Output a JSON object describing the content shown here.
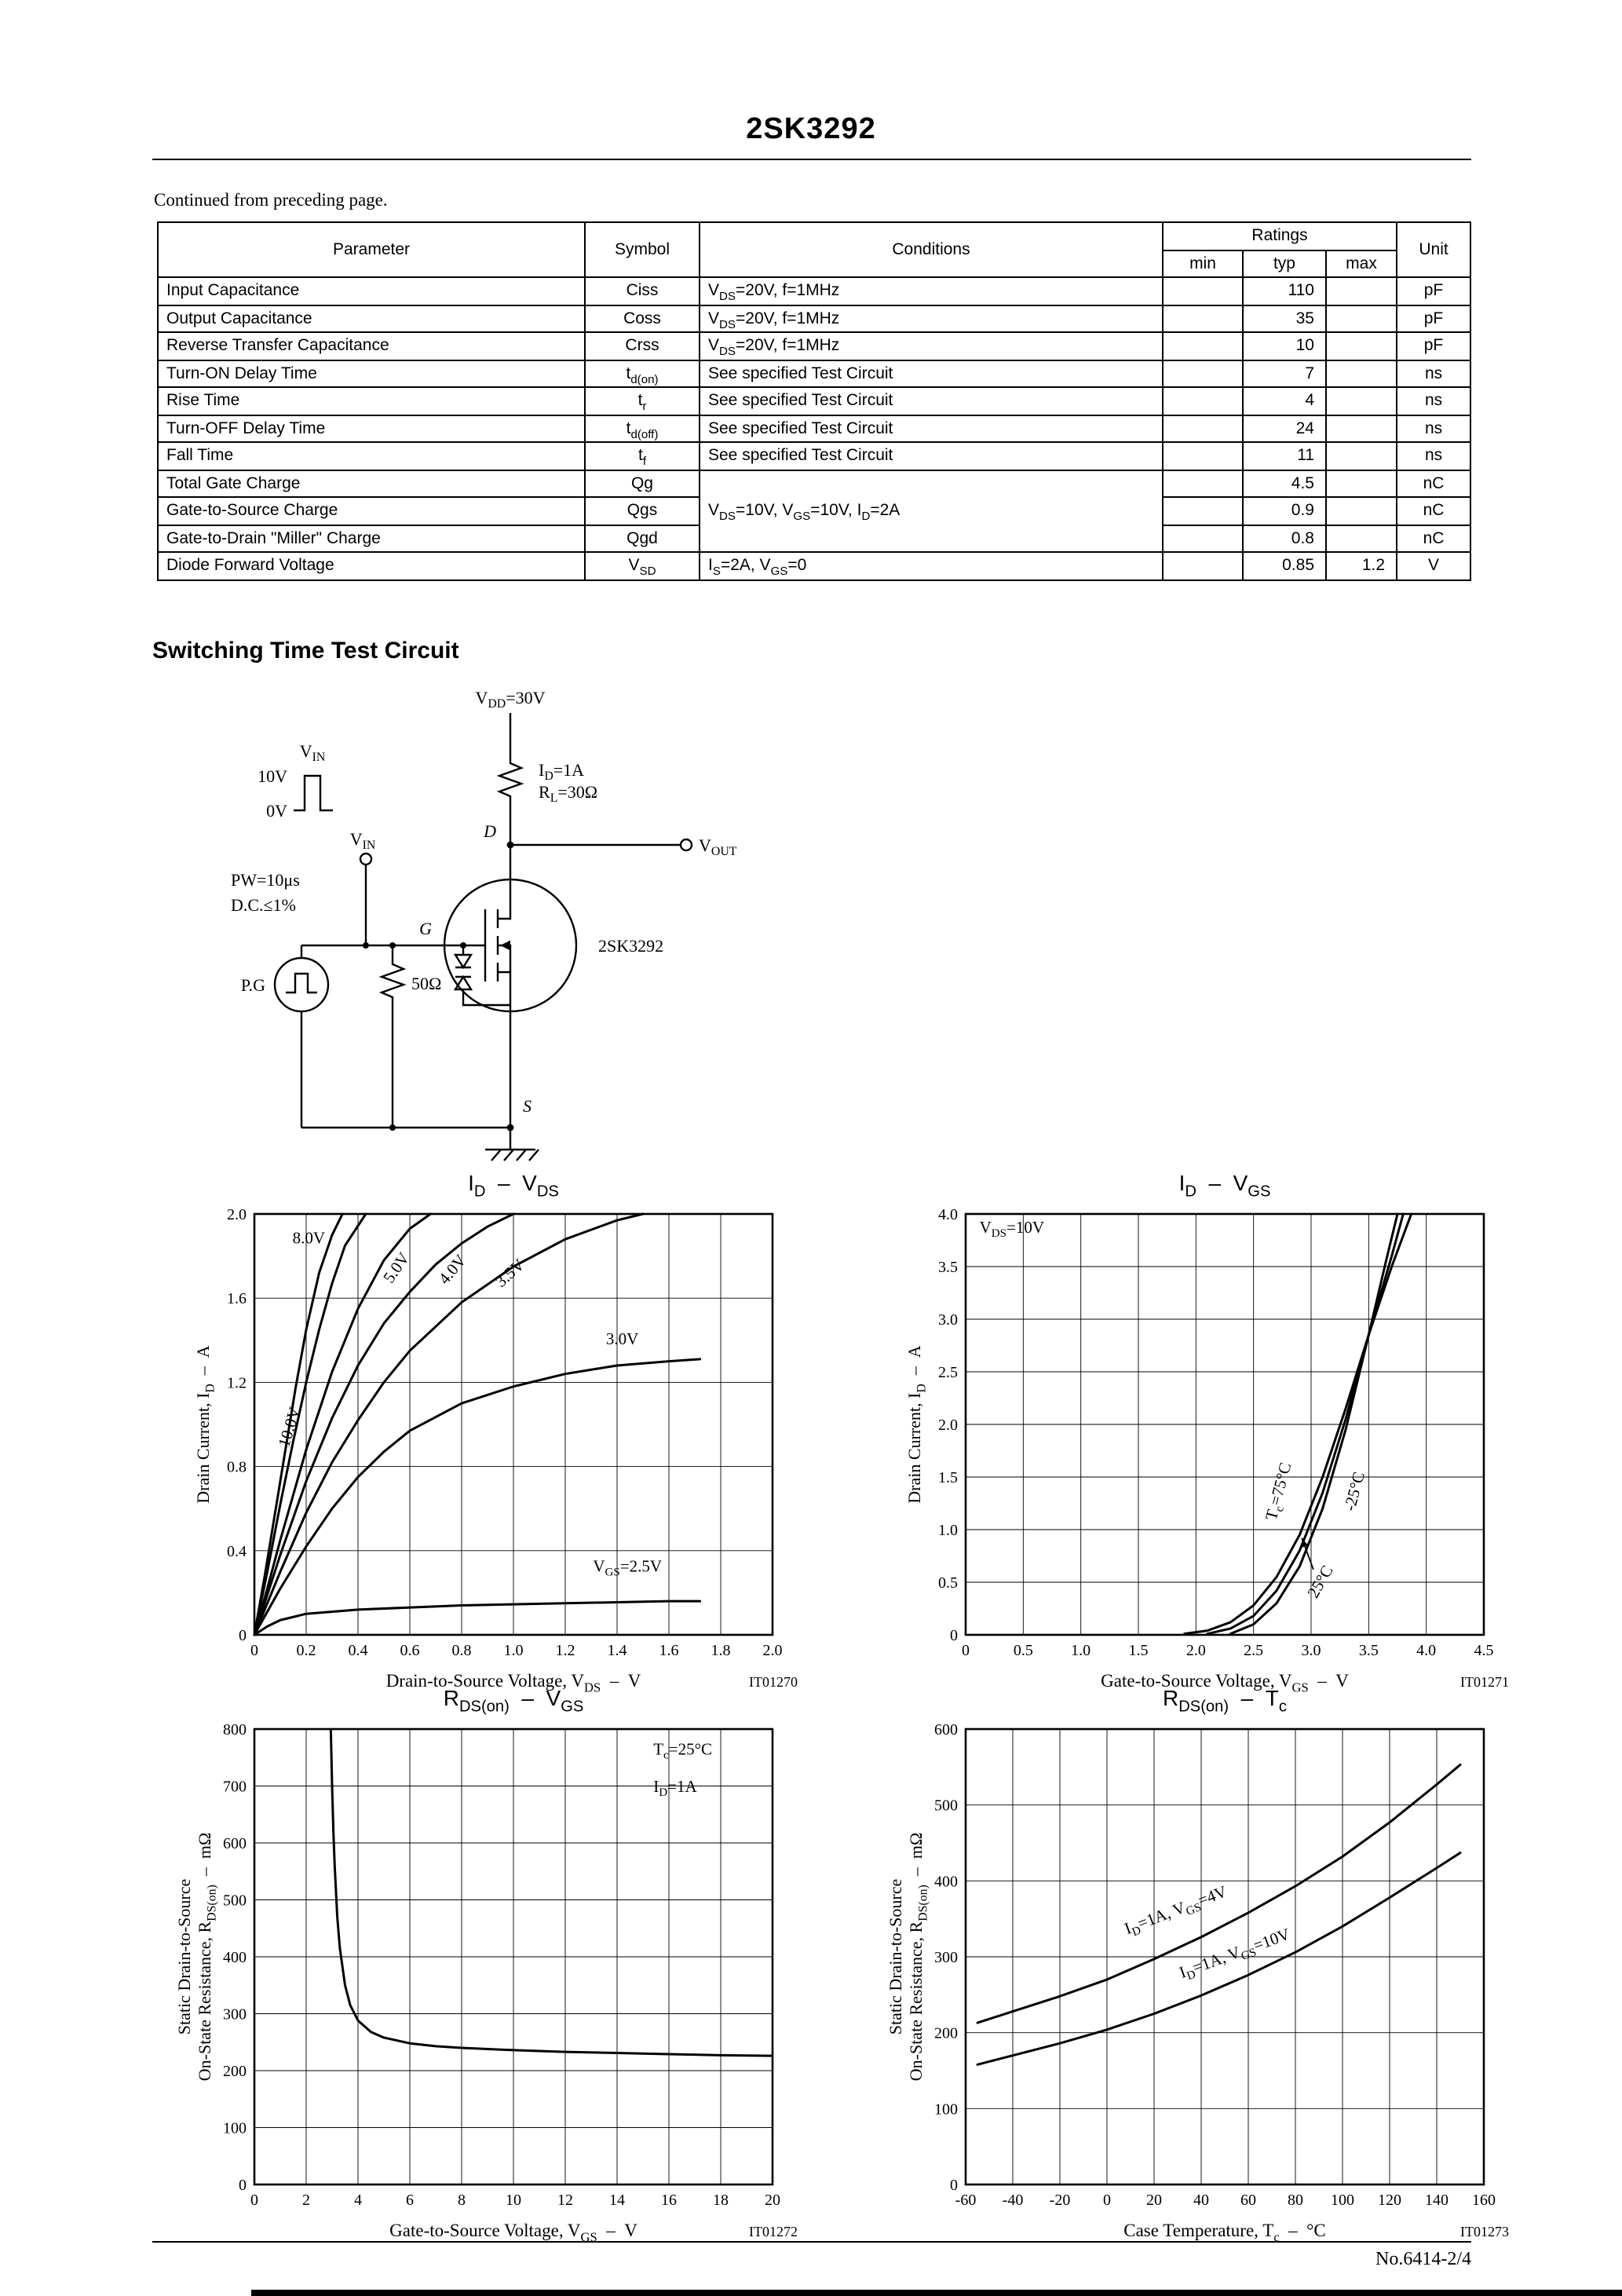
{
  "page": {
    "part_number": "2SK3292",
    "continued_note": "Continued from preceding page.",
    "footer_note": "No.6414-2/4"
  },
  "table": {
    "headers": {
      "parameter": "Parameter",
      "symbol": "Symbol",
      "conditions": "Conditions",
      "ratings": "Ratings",
      "min": "min",
      "typ": "typ",
      "max": "max",
      "unit": "Unit"
    },
    "rows": [
      {
        "parameter": "Input Capacitance",
        "symbol": "Ciss",
        "conditions": "V~DS~=20V, f=1MHz",
        "min": "",
        "typ": "110",
        "max": "",
        "unit": "pF"
      },
      {
        "parameter": "Output Capacitance",
        "symbol": "Coss",
        "conditions": "V~DS~=20V, f=1MHz",
        "min": "",
        "typ": "35",
        "max": "",
        "unit": "pF"
      },
      {
        "parameter": "Reverse Transfer Capacitance",
        "symbol": "Crss",
        "conditions": "V~DS~=20V, f=1MHz",
        "min": "",
        "typ": "10",
        "max": "",
        "unit": "pF"
      },
      {
        "parameter": "Turn-ON Delay Time",
        "symbol": "t~d(on)~",
        "conditions": "See specified Test Circuit",
        "min": "",
        "typ": "7",
        "max": "",
        "unit": "ns"
      },
      {
        "parameter": "Rise Time",
        "symbol": "t~r~",
        "conditions": "See specified Test Circuit",
        "min": "",
        "typ": "4",
        "max": "",
        "unit": "ns"
      },
      {
        "parameter": "Turn-OFF Delay Time",
        "symbol": "t~d(off)~",
        "conditions": "See specified Test Circuit",
        "min": "",
        "typ": "24",
        "max": "",
        "unit": "ns"
      },
      {
        "parameter": "Fall Time",
        "symbol": "t~f~",
        "conditions": "See specified Test Circuit",
        "min": "",
        "typ": "11",
        "max": "",
        "unit": "ns"
      },
      {
        "parameter": "Total Gate Charge",
        "symbol": "Qg",
        "conditions": "V~DS~=10V, V~GS~=10V, I~D~=2A",
        "cond_rowspan": 3,
        "min": "",
        "typ": "4.5",
        "max": "",
        "unit": "nC"
      },
      {
        "parameter": "Gate-to-Source Charge",
        "symbol": "Qgs",
        "conditions": null,
        "min": "",
        "typ": "0.9",
        "max": "",
        "unit": "nC"
      },
      {
        "parameter": "Gate-to-Drain \"Miller\" Charge",
        "symbol": "Qgd",
        "conditions": null,
        "min": "",
        "typ": "0.8",
        "max": "",
        "unit": "nC"
      },
      {
        "parameter": "Diode Forward Voltage",
        "symbol": "V~SD~",
        "conditions": "I~S~=2A, V~GS~=0",
        "min": "",
        "typ": "0.85",
        "max": "1.2",
        "unit": "V"
      }
    ]
  },
  "circuit": {
    "heading": "Switching Time Test Circuit",
    "labels": {
      "vdd": "V~DD~=30V",
      "id": "I~D~=1A",
      "rl": "R~L~=30Ω",
      "vin_wave": "V~IN~",
      "v10": "10V",
      "v0": "0V",
      "vin": "V~IN~",
      "vout": "V~OUT~",
      "d": "D",
      "g": "G",
      "s": "S",
      "pw": "PW=10μs",
      "dc": "D.C.≤1%",
      "pg": "P.G",
      "r50": "50Ω",
      "device": "2SK3292"
    }
  },
  "chart_data": [
    {
      "type": "line",
      "name": "id-vds",
      "title": "I~D~  –  V~DS~",
      "xlabel": "Drain-to-Source Voltage, V~DS~  –  V",
      "ylabel1": "Drain Current, I~D~  –  A",
      "tag": "IT01270",
      "xlim": [
        0,
        2
      ],
      "ylim": [
        0,
        2
      ],
      "xtick_vals": [
        0,
        0.2,
        0.4,
        0.6,
        0.8,
        1.0,
        1.2,
        1.4,
        1.6,
        1.8,
        2.0
      ],
      "xtick_labels": [
        "0",
        "0.2",
        "0.4",
        "0.6",
        "0.8",
        "1.0",
        "1.2",
        "1.4",
        "1.6",
        "1.8",
        "2.0"
      ],
      "ytick_vals": [
        0,
        0.4,
        0.8,
        1.2,
        1.6,
        2.0
      ],
      "ytick_labels": [
        "0",
        "0.4",
        "0.8",
        "1.2",
        "1.6",
        "2.0"
      ],
      "series": [
        {
          "name": "VGS=10.0V",
          "points": [
            [
              0,
              0
            ],
            [
              0.04,
              0.28
            ],
            [
              0.08,
              0.58
            ],
            [
              0.12,
              0.88
            ],
            [
              0.16,
              1.18
            ],
            [
              0.2,
              1.45
            ],
            [
              0.25,
              1.72
            ],
            [
              0.3,
              1.9
            ],
            [
              0.34,
              2.0
            ]
          ]
        },
        {
          "name": "VGS=8.0V",
          "points": [
            [
              0,
              0
            ],
            [
              0.05,
              0.3
            ],
            [
              0.1,
              0.62
            ],
            [
              0.15,
              0.92
            ],
            [
              0.2,
              1.2
            ],
            [
              0.25,
              1.45
            ],
            [
              0.3,
              1.67
            ],
            [
              0.35,
              1.85
            ],
            [
              0.43,
              2.0
            ]
          ]
        },
        {
          "name": "VGS=5.0V",
          "points": [
            [
              0,
              0
            ],
            [
              0.05,
              0.22
            ],
            [
              0.1,
              0.45
            ],
            [
              0.2,
              0.88
            ],
            [
              0.3,
              1.25
            ],
            [
              0.4,
              1.55
            ],
            [
              0.5,
              1.78
            ],
            [
              0.6,
              1.93
            ],
            [
              0.68,
              2.0
            ]
          ]
        },
        {
          "name": "VGS=4.0V",
          "points": [
            [
              0,
              0
            ],
            [
              0.1,
              0.38
            ],
            [
              0.2,
              0.73
            ],
            [
              0.3,
              1.03
            ],
            [
              0.4,
              1.28
            ],
            [
              0.5,
              1.48
            ],
            [
              0.6,
              1.63
            ],
            [
              0.7,
              1.76
            ],
            [
              0.8,
              1.86
            ],
            [
              0.9,
              1.94
            ],
            [
              1.0,
              2.0
            ]
          ]
        },
        {
          "name": "VGS=3.5V",
          "points": [
            [
              0,
              0
            ],
            [
              0.1,
              0.3
            ],
            [
              0.2,
              0.58
            ],
            [
              0.3,
              0.82
            ],
            [
              0.4,
              1.02
            ],
            [
              0.5,
              1.2
            ],
            [
              0.6,
              1.35
            ],
            [
              0.8,
              1.58
            ],
            [
              1.0,
              1.75
            ],
            [
              1.2,
              1.88
            ],
            [
              1.4,
              1.97
            ],
            [
              1.5,
              2.0
            ]
          ]
        },
        {
          "name": "VGS=3.0V",
          "points": [
            [
              0,
              0
            ],
            [
              0.1,
              0.22
            ],
            [
              0.2,
              0.42
            ],
            [
              0.3,
              0.6
            ],
            [
              0.4,
              0.75
            ],
            [
              0.5,
              0.87
            ],
            [
              0.6,
              0.97
            ],
            [
              0.8,
              1.1
            ],
            [
              1.0,
              1.18
            ],
            [
              1.2,
              1.24
            ],
            [
              1.4,
              1.28
            ],
            [
              1.6,
              1.3
            ],
            [
              1.72,
              1.31
            ]
          ]
        },
        {
          "name": "VGS=2.5V",
          "points": [
            [
              0,
              0
            ],
            [
              0.05,
              0.04
            ],
            [
              0.1,
              0.07
            ],
            [
              0.2,
              0.1
            ],
            [
              0.4,
              0.12
            ],
            [
              0.8,
              0.14
            ],
            [
              1.2,
              0.15
            ],
            [
              1.6,
              0.16
            ],
            [
              1.72,
              0.16
            ]
          ]
        }
      ],
      "annotations": [
        {
          "text": "8.0V",
          "x": 0.21,
          "y": 1.86
        },
        {
          "text": "10.0V",
          "x": 0.155,
          "y": 0.98,
          "rotate": -73
        },
        {
          "text": "5.0V",
          "x": 0.565,
          "y": 1.73,
          "rotate": -55
        },
        {
          "text": "4.0V",
          "x": 0.78,
          "y": 1.72,
          "rotate": -50
        },
        {
          "text": "3.5V",
          "x": 1.0,
          "y": 1.7,
          "rotate": -42
        },
        {
          "text": "3.0V",
          "x": 1.42,
          "y": 1.38
        },
        {
          "text": "V~GS~=2.5V",
          "x": 1.44,
          "y": 0.3
        }
      ]
    },
    {
      "type": "line",
      "name": "id-vgs",
      "title": "I~D~  –  V~GS~",
      "xlabel": "Gate-to-Source Voltage, V~GS~  –  V",
      "ylabel1": "Drain Current, I~D~  –  A",
      "tag": "IT01271",
      "xlim": [
        0,
        4.5
      ],
      "ylim": [
        0,
        4
      ],
      "xtick_vals": [
        0,
        0.5,
        1.0,
        1.5,
        2.0,
        2.5,
        3.0,
        3.5,
        4.0,
        4.5
      ],
      "xtick_labels": [
        "0",
        "0.5",
        "1.0",
        "1.5",
        "2.0",
        "2.5",
        "3.0",
        "3.5",
        "4.0",
        "4.5"
      ],
      "ytick_vals": [
        0,
        0.5,
        1.0,
        1.5,
        2.0,
        2.5,
        3.0,
        3.5,
        4.0
      ],
      "ytick_labels": [
        "0",
        "0.5",
        "1.0",
        "1.5",
        "2.0",
        "2.5",
        "3.0",
        "3.5",
        "4.0"
      ],
      "series": [
        {
          "name": "Tc=75C",
          "points": [
            [
              1.9,
              0.01
            ],
            [
              2.1,
              0.04
            ],
            [
              2.3,
              0.12
            ],
            [
              2.5,
              0.28
            ],
            [
              2.7,
              0.55
            ],
            [
              2.9,
              0.95
            ],
            [
              3.1,
              1.5
            ],
            [
              3.3,
              2.15
            ],
            [
              3.5,
              2.85
            ],
            [
              3.7,
              3.5
            ],
            [
              3.87,
              4.0
            ]
          ]
        },
        {
          "name": "Tc=25C",
          "points": [
            [
              2.1,
              0.01
            ],
            [
              2.3,
              0.06
            ],
            [
              2.5,
              0.18
            ],
            [
              2.7,
              0.42
            ],
            [
              2.9,
              0.8
            ],
            [
              3.1,
              1.35
            ],
            [
              3.3,
              2.05
            ],
            [
              3.5,
              2.85
            ],
            [
              3.7,
              3.6
            ],
            [
              3.8,
              4.0
            ]
          ]
        },
        {
          "name": "Tc=-25C",
          "points": [
            [
              2.3,
              0.01
            ],
            [
              2.5,
              0.1
            ],
            [
              2.7,
              0.3
            ],
            [
              2.9,
              0.65
            ],
            [
              3.1,
              1.2
            ],
            [
              3.3,
              1.95
            ],
            [
              3.5,
              2.85
            ],
            [
              3.65,
              3.55
            ],
            [
              3.75,
              4.0
            ]
          ]
        }
      ],
      "annotations": [
        {
          "text": "V~DS~=10V",
          "x": 0.12,
          "y": 3.82,
          "anchor": "start"
        },
        {
          "text": "T~c~=75°C",
          "x": 2.76,
          "y": 1.35,
          "rotate": -75
        },
        {
          "text": "-25°C",
          "x": 3.42,
          "y": 1.35,
          "rotate": -75
        },
        {
          "text": "25°C",
          "x": 3.12,
          "y": 0.48,
          "rotate": -60,
          "arrow": [
            3.02,
            0.62,
            2.92,
            0.92
          ]
        }
      ]
    },
    {
      "type": "line",
      "name": "rdson-vgs",
      "title": "R~DS(on)~  –  V~GS~",
      "xlabel": "Gate-to-Source Voltage, V~GS~  –  V",
      "ylabel1": "Static Drain-to-Source",
      "ylabel2": "On-State Resistance, R~DS(on)~  –  mΩ",
      "tag": "IT01272",
      "xlim": [
        0,
        20
      ],
      "ylim": [
        0,
        800
      ],
      "xtick_vals": [
        0,
        2,
        4,
        6,
        8,
        10,
        12,
        14,
        16,
        18,
        20
      ],
      "xtick_labels": [
        "0",
        "2",
        "4",
        "6",
        "8",
        "10",
        "12",
        "14",
        "16",
        "18",
        "20"
      ],
      "ytick_vals": [
        0,
        100,
        200,
        300,
        400,
        500,
        600,
        700,
        800
      ],
      "ytick_labels": [
        "0",
        "100",
        "200",
        "300",
        "400",
        "500",
        "600",
        "700",
        "800"
      ],
      "series": [
        {
          "name": "Tc=25C, ID=1A",
          "points": [
            [
              2.95,
              800
            ],
            [
              3.0,
              700
            ],
            [
              3.05,
              620
            ],
            [
              3.1,
              560
            ],
            [
              3.2,
              470
            ],
            [
              3.3,
              415
            ],
            [
              3.5,
              350
            ],
            [
              3.7,
              315
            ],
            [
              4.0,
              288
            ],
            [
              4.5,
              268
            ],
            [
              5,
              258
            ],
            [
              6,
              248
            ],
            [
              7,
              243
            ],
            [
              8,
              240
            ],
            [
              10,
              236
            ],
            [
              12,
              233
            ],
            [
              14,
              231
            ],
            [
              16,
              229
            ],
            [
              18,
              227
            ],
            [
              20,
              226
            ]
          ]
        }
      ],
      "annotations": [
        {
          "text": "T~c~=25°C",
          "x": 15.4,
          "y": 755,
          "anchor": "start"
        },
        {
          "text": "I~D~=1A",
          "x": 15.4,
          "y": 690,
          "anchor": "start"
        }
      ]
    },
    {
      "type": "line",
      "name": "rdson-tc",
      "title": "R~DS(on)~  –  T~c~",
      "xlabel": "Case Temperature, T~c~  –  °C",
      "ylabel1": "Static Drain-to-Source",
      "ylabel2": "On-State Resistance, R~DS(on)~  –  mΩ",
      "tag": "IT01273",
      "xlim": [
        -60,
        160
      ],
      "ylim": [
        0,
        600
      ],
      "xtick_vals": [
        -60,
        -40,
        -20,
        0,
        20,
        40,
        60,
        80,
        100,
        120,
        140,
        160
      ],
      "xtick_labels": [
        "-60",
        "-40",
        "-20",
        "0",
        "20",
        "40",
        "60",
        "80",
        "100",
        "120",
        "140",
        "160"
      ],
      "ytick_vals": [
        0,
        100,
        200,
        300,
        400,
        500,
        600
      ],
      "ytick_labels": [
        "0",
        "100",
        "200",
        "300",
        "400",
        "500",
        "600"
      ],
      "series": [
        {
          "name": "ID=1A, VGS=4V",
          "points": [
            [
              -55,
              213
            ],
            [
              -40,
              228
            ],
            [
              -20,
              248
            ],
            [
              0,
              270
            ],
            [
              20,
              297
            ],
            [
              40,
              326
            ],
            [
              60,
              358
            ],
            [
              80,
              393
            ],
            [
              100,
              432
            ],
            [
              120,
              477
            ],
            [
              140,
              527
            ],
            [
              150,
              553
            ]
          ]
        },
        {
          "name": "ID=1A, VGS=10V",
          "points": [
            [
              -55,
              158
            ],
            [
              -40,
              170
            ],
            [
              -20,
              186
            ],
            [
              0,
              204
            ],
            [
              20,
              225
            ],
            [
              40,
              249
            ],
            [
              60,
              276
            ],
            [
              80,
              306
            ],
            [
              100,
              340
            ],
            [
              120,
              378
            ],
            [
              140,
              417
            ],
            [
              150,
              437
            ]
          ]
        }
      ],
      "annotations": [
        {
          "text": "I~D~=1A, V~GS~=4V",
          "x": 30,
          "y": 355,
          "rotate": -21
        },
        {
          "text": "I~D~=1A, V~GS~=10V",
          "x": 55,
          "y": 298,
          "rotate": -20
        }
      ]
    }
  ]
}
